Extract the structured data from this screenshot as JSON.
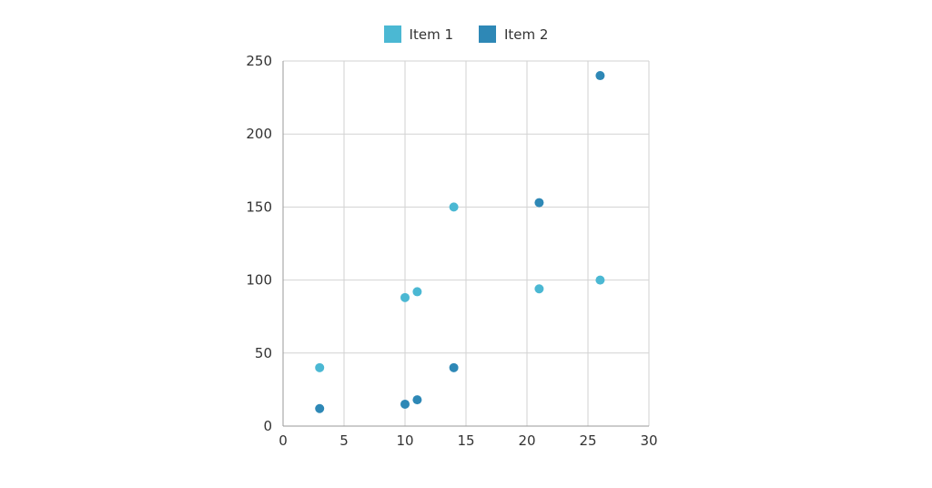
{
  "chart_data": {
    "type": "scatter",
    "xlim": [
      0,
      30
    ],
    "ylim": [
      0,
      250
    ],
    "x_ticks": [
      0,
      5,
      10,
      15,
      20,
      25,
      30
    ],
    "y_ticks": [
      0,
      50,
      100,
      150,
      200,
      250
    ],
    "grid": true,
    "legend_position": "top-center",
    "series": [
      {
        "name": "Item 1",
        "color": "#4bb8d3",
        "points": [
          {
            "x": 3,
            "y": 40
          },
          {
            "x": 10,
            "y": 88
          },
          {
            "x": 11,
            "y": 92
          },
          {
            "x": 14,
            "y": 150
          },
          {
            "x": 21,
            "y": 94
          },
          {
            "x": 26,
            "y": 100
          }
        ]
      },
      {
        "name": "Item 2",
        "color": "#2e88b6",
        "points": [
          {
            "x": 3,
            "y": 12
          },
          {
            "x": 10,
            "y": 15
          },
          {
            "x": 11,
            "y": 18
          },
          {
            "x": 14,
            "y": 40
          },
          {
            "x": 21,
            "y": 153
          },
          {
            "x": 26,
            "y": 240
          }
        ]
      }
    ]
  }
}
